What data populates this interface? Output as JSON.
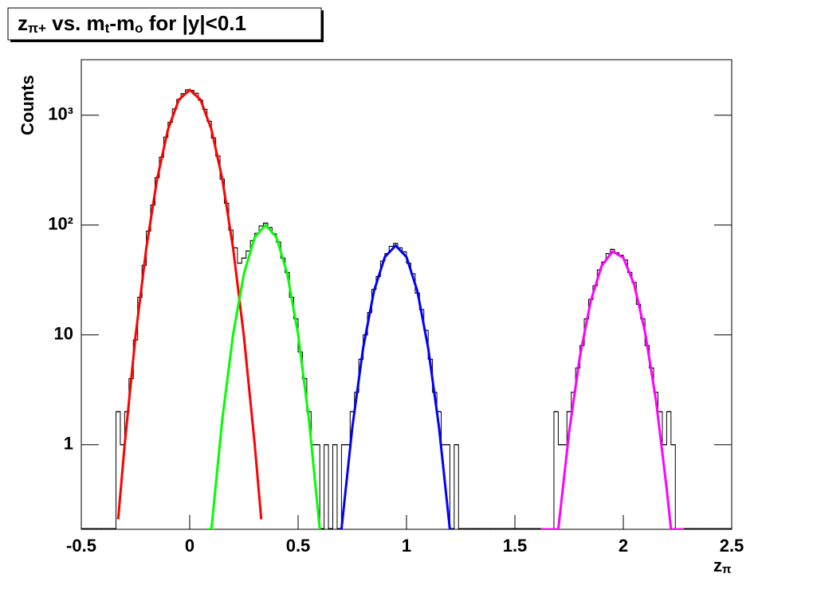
{
  "chart_data": {
    "type": "histogram",
    "title": [
      "z",
      "π+",
      " vs. m",
      "t",
      "-m",
      "o",
      " for |y|<0.1"
    ],
    "xlabel": [
      "z",
      "π"
    ],
    "ylabel": "Counts",
    "log_y": true,
    "grid": false,
    "xlim": [
      -0.5,
      2.5
    ],
    "ylim": [
      0.17,
      3200
    ],
    "xticks": [
      -0.5,
      0,
      0.5,
      1,
      1.5,
      2,
      2.5
    ],
    "yticks": [
      1,
      10,
      {
        "value": 100,
        "label": "10²"
      },
      {
        "value": 1000,
        "label": "10³"
      }
    ],
    "histogram": {
      "color": "#000000",
      "bins": [
        -0.5,
        -0.48,
        -0.46,
        -0.44,
        -0.42,
        -0.4,
        -0.38,
        -0.36,
        -0.34,
        -0.32,
        -0.3,
        -0.28,
        -0.26,
        -0.24,
        -0.22,
        -0.2,
        -0.18,
        -0.16,
        -0.14,
        -0.12,
        -0.1,
        -0.08,
        -0.06,
        -0.04,
        -0.02,
        0,
        0.02,
        0.04,
        0.06,
        0.08,
        0.1,
        0.12,
        0.14,
        0.16,
        0.18,
        0.2,
        0.22,
        0.24,
        0.26,
        0.28,
        0.3,
        0.32,
        0.34,
        0.36,
        0.38,
        0.4,
        0.42,
        0.44,
        0.46,
        0.48,
        0.5,
        0.52,
        0.54,
        0.56,
        0.58,
        0.6,
        0.62,
        0.64,
        0.66,
        0.68,
        0.7,
        0.72,
        0.74,
        0.76,
        0.78,
        0.8,
        0.82,
        0.84,
        0.86,
        0.88,
        0.9,
        0.92,
        0.94,
        0.96,
        0.98,
        1,
        1.02,
        1.04,
        1.06,
        1.08,
        1.1,
        1.12,
        1.14,
        1.16,
        1.18,
        1.2,
        1.22,
        1.24,
        1.26,
        1.28,
        1.3,
        1.32,
        1.34,
        1.36,
        1.38,
        1.4,
        1.42,
        1.44,
        1.46,
        1.48,
        1.5,
        1.52,
        1.54,
        1.56,
        1.58,
        1.6,
        1.62,
        1.64,
        1.66,
        1.68,
        1.7,
        1.72,
        1.74,
        1.76,
        1.78,
        1.8,
        1.82,
        1.84,
        1.86,
        1.88,
        1.9,
        1.92,
        1.94,
        1.96,
        1.98,
        2,
        2.02,
        2.04,
        2.06,
        2.08,
        2.1,
        2.12,
        2.14,
        2.16,
        2.18,
        2.2,
        2.22,
        2.24,
        2.26,
        2.28,
        2.3,
        2.32,
        2.34,
        2.36,
        2.38,
        2.4,
        2.42,
        2.44,
        2.46,
        2.48,
        2.5
      ],
      "counts": [
        0,
        0,
        0,
        0,
        0,
        0,
        0,
        0,
        2,
        1,
        2,
        4,
        9,
        22,
        43,
        88,
        152,
        270,
        415,
        630,
        860,
        1140,
        1390,
        1570,
        1700,
        1680,
        1585,
        1370,
        1130,
        880,
        620,
        425,
        262,
        158,
        90,
        62,
        45,
        50,
        58,
        72,
        84,
        98,
        104,
        95,
        83,
        70,
        50,
        37,
        22,
        14,
        7,
        4,
        2,
        1,
        1,
        0,
        1,
        0,
        1,
        0,
        1,
        1,
        2,
        3,
        6,
        10,
        16,
        26,
        34,
        47,
        55,
        64,
        68,
        62,
        57,
        45,
        36,
        24,
        17,
        11,
        6,
        3,
        2,
        1,
        1,
        0,
        1,
        0,
        0,
        0,
        0,
        0,
        0,
        0,
        0,
        0,
        0,
        0,
        0,
        0,
        0,
        0,
        0,
        0,
        0,
        0,
        0,
        0,
        0,
        2,
        1,
        1,
        2,
        3,
        5,
        8,
        14,
        21,
        28,
        39,
        46,
        55,
        60,
        56,
        53,
        48,
        37,
        30,
        19,
        14,
        8,
        5,
        3,
        2,
        1,
        2,
        1,
        0,
        0,
        0,
        0,
        0,
        0,
        0,
        0,
        0,
        0,
        0,
        0,
        0
      ]
    },
    "series": [
      {
        "color": "#ff0000",
        "x": [
          -0.33,
          -0.3,
          -0.25,
          -0.2,
          -0.15,
          -0.1,
          -0.05,
          0,
          0.05,
          0.1,
          0.15,
          0.2,
          0.25,
          0.3,
          0.33
        ],
        "values": [
          0.21,
          1.0,
          9.7,
          62,
          265,
          744,
          1383,
          1700,
          1383,
          744,
          265,
          62,
          9.7,
          1.0,
          0.21
        ]
      },
      {
        "color": "#00ff00",
        "x": [
          0.08,
          0.1,
          0.15,
          0.2,
          0.25,
          0.3,
          0.35,
          0.4,
          0.45,
          0.5,
          0.55,
          0.6
        ],
        "values": [
          0.17,
          0.17,
          1.69,
          10.1,
          36,
          77.5,
          100,
          77.5,
          36,
          10.1,
          1.69,
          0.17
        ]
      },
      {
        "color": "#0000ff",
        "x": [
          0.7,
          0.75,
          0.8,
          0.85,
          0.9,
          0.95,
          1.0,
          1.05,
          1.1,
          1.15,
          1.2
        ],
        "values": [
          0.17,
          1.44,
          7.6,
          25.1,
          51.2,
          65,
          51.2,
          25.1,
          7.6,
          1.44,
          0.17
        ]
      },
      {
        "color": "#ff00ff",
        "x": [
          1.62,
          1.7,
          1.75,
          1.8,
          1.85,
          1.9,
          1.95,
          2.0,
          2.05,
          2.1,
          2.15,
          2.2,
          2.22,
          2.28
        ],
        "values": [
          0.17,
          0.17,
          1.3,
          6.4,
          20.4,
          42.5,
          57.5,
          50.5,
          28.9,
          10.7,
          2.6,
          0.4,
          0.17,
          0.17
        ]
      }
    ]
  }
}
